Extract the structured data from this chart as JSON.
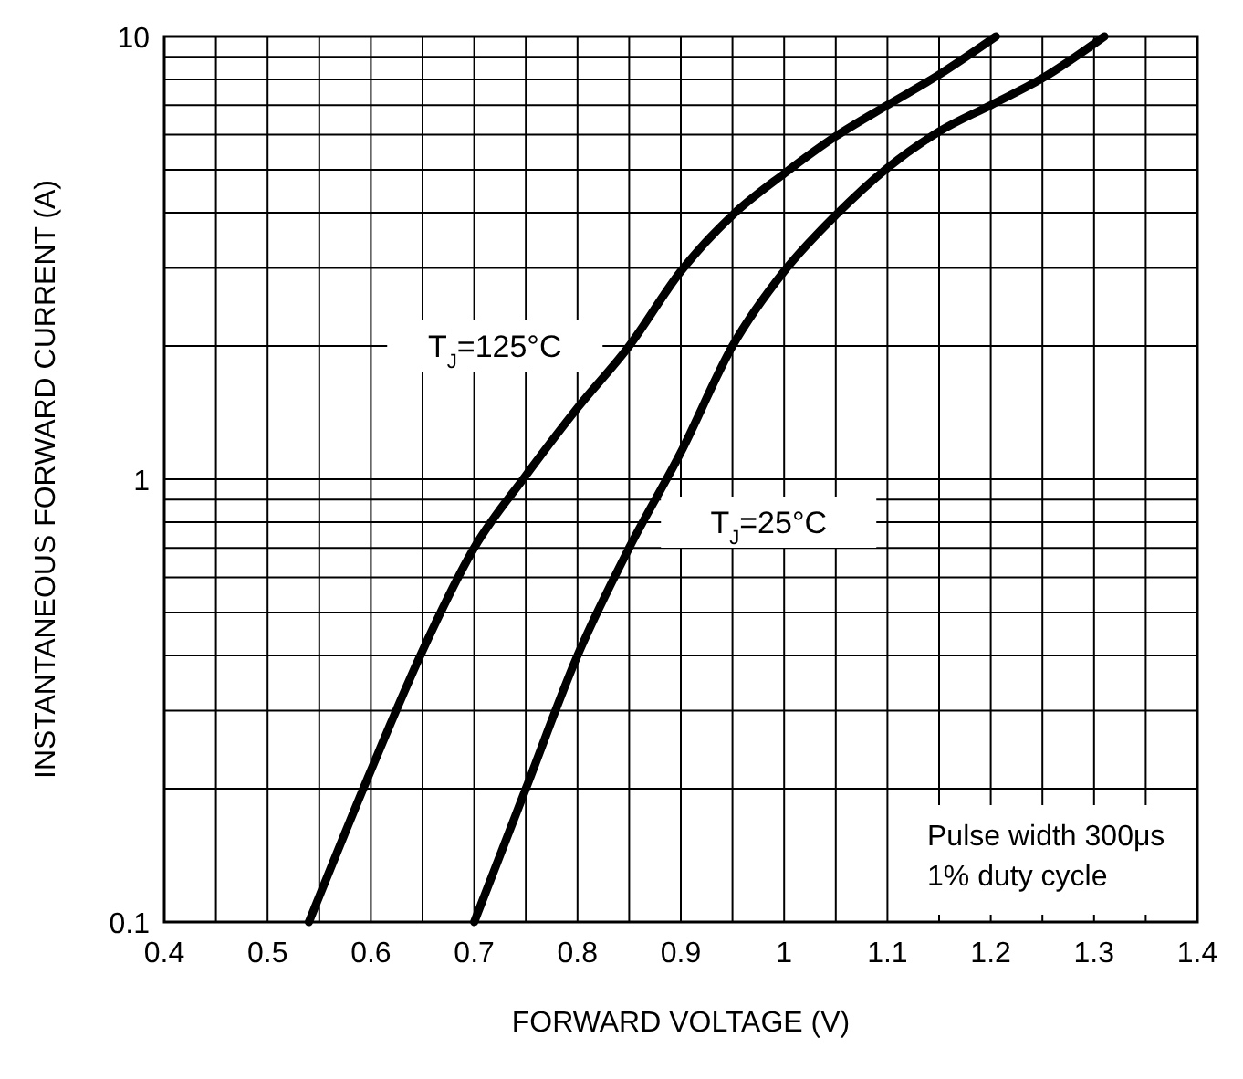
{
  "chart_data": {
    "type": "line",
    "xlabel": "FORWARD VOLTAGE (V)",
    "ylabel": "INSTANTANEOUS FORWARD CURRENT (A)",
    "log": "y",
    "grid": true,
    "marker": "none",
    "line_style": "solid",
    "xlim": [
      0.4,
      1.4
    ],
    "xticks": [
      0.4,
      {
        "value": 0.45,
        "label": null
      },
      0.5,
      {
        "value": 0.55,
        "label": null
      },
      0.6,
      {
        "value": 0.65,
        "label": null
      },
      0.7,
      {
        "value": 0.75,
        "label": null
      },
      0.8,
      {
        "value": 0.85,
        "label": null
      },
      0.9,
      {
        "value": 0.95,
        "label": null
      },
      1,
      {
        "value": 1.05,
        "label": null
      },
      1.1,
      {
        "value": 1.15,
        "label": null
      },
      1.2,
      {
        "value": 1.25,
        "label": null
      },
      1.3,
      {
        "value": 1.35,
        "label": null
      },
      1.4
    ],
    "ylim": [
      0.1,
      10
    ],
    "yticks": [
      0.1,
      {
        "value": 0.2,
        "label": null
      },
      {
        "value": 0.3,
        "label": null
      },
      {
        "value": 0.4,
        "label": null
      },
      {
        "value": 0.5,
        "label": null
      },
      {
        "value": 0.6,
        "label": null
      },
      {
        "value": 0.7,
        "label": null
      },
      {
        "value": 0.8,
        "label": null
      },
      {
        "value": 0.9,
        "label": null
      },
      1,
      {
        "value": 2,
        "label": null
      },
      {
        "value": 3,
        "label": null
      },
      {
        "value": 4,
        "label": null
      },
      {
        "value": 5,
        "label": null
      },
      {
        "value": 6,
        "label": null
      },
      {
        "value": 7,
        "label": null
      },
      {
        "value": 8,
        "label": null
      },
      {
        "value": 9,
        "label": null
      },
      10
    ],
    "series": [
      {
        "name": "T$_{J}$=125°C",
        "color": "#000000",
        "x": [
          0.54,
          0.6,
          0.65,
          0.7,
          0.75,
          0.8,
          0.85,
          0.9,
          0.95,
          1.0,
          1.05,
          1.1,
          1.15,
          1.205
        ],
        "values": [
          0.1,
          0.22,
          0.41,
          0.7,
          1.02,
          1.45,
          2.0,
          2.95,
          3.95,
          4.9,
          5.95,
          7.0,
          8.2,
          10
        ]
      },
      {
        "name": "T$_{J}$=25°C",
        "color": "#000000",
        "x": [
          0.7,
          0.75,
          0.8,
          0.85,
          0.9,
          0.95,
          1.0,
          1.05,
          1.1,
          1.15,
          1.2,
          1.25,
          1.31
        ],
        "values": [
          0.1,
          0.2,
          0.4,
          0.7,
          1.15,
          2.0,
          2.95,
          3.95,
          5.05,
          6.1,
          7.0,
          8.05,
          10
        ]
      }
    ],
    "annotations": [
      "Pulse width 300μs\n1% duty cycle"
    ]
  }
}
